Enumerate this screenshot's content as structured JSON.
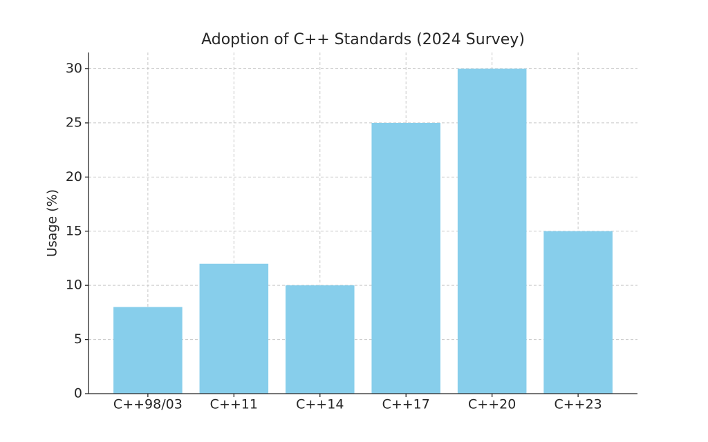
{
  "chart_data": {
    "type": "bar",
    "title": "Adoption of C++ Standards (2024 Survey)",
    "y_label": "Usage (%)",
    "categories": [
      "C++98/03",
      "C++11",
      "C++14",
      "C++17",
      "C++20",
      "C++23"
    ],
    "values": [
      8,
      12,
      10,
      25,
      30,
      15
    ],
    "color": "#87ceeb",
    "ylim": [
      0,
      31.5
    ],
    "yticks": [
      0,
      5,
      10,
      15,
      20,
      25,
      30
    ],
    "grid": true
  }
}
